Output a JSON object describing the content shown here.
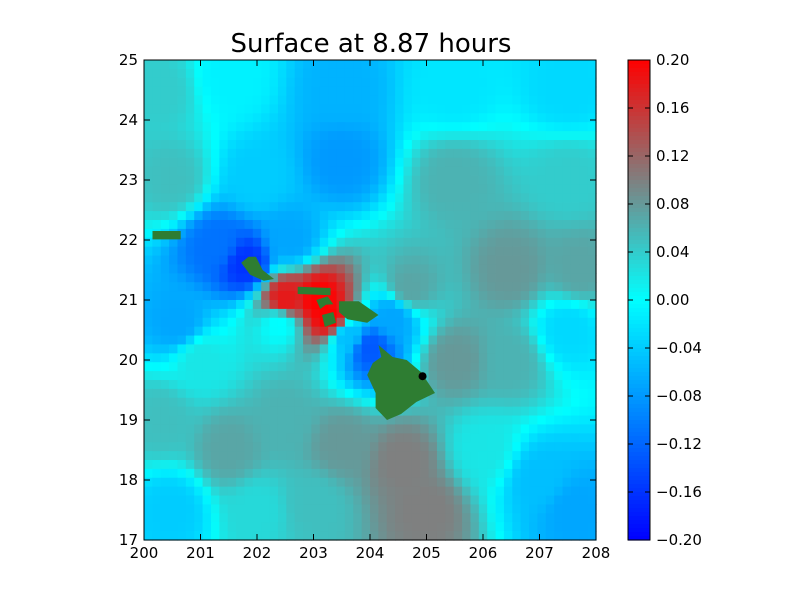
{
  "chart_data": {
    "type": "heatmap",
    "title": "Surface at 8.87 hours",
    "xlabel": "",
    "ylabel": "",
    "xlim": [
      200,
      208
    ],
    "ylim": [
      17,
      25
    ],
    "x_ticks": [
      "200",
      "201",
      "202",
      "203",
      "204",
      "205",
      "206",
      "207",
      "208"
    ],
    "y_ticks": [
      "17",
      "18",
      "19",
      "20",
      "21",
      "22",
      "23",
      "24",
      "25"
    ],
    "grid": false,
    "colorbar": {
      "min": -0.2,
      "max": 0.2,
      "ticks": [
        "0.20",
        "0.16",
        "0.12",
        "0.08",
        "0.04",
        "0.00",
        "−0.04",
        "−0.08",
        "−0.12",
        "−0.16",
        "−0.20"
      ],
      "colors": {
        "min": "#0000ff",
        "zero": "#00ffff",
        "max": "#ff0000"
      }
    },
    "field_samples": [
      {
        "x": 200.3,
        "y": 24.5,
        "value": 0.04
      },
      {
        "x": 201.5,
        "y": 24.7,
        "value": -0.01
      },
      {
        "x": 203.5,
        "y": 24.5,
        "value": -0.06
      },
      {
        "x": 205.5,
        "y": 24.5,
        "value": -0.02
      },
      {
        "x": 207.5,
        "y": 24.5,
        "value": -0.03
      },
      {
        "x": 200.5,
        "y": 23.0,
        "value": 0.05
      },
      {
        "x": 202.0,
        "y": 23.0,
        "value": -0.04
      },
      {
        "x": 203.5,
        "y": 23.3,
        "value": -0.08
      },
      {
        "x": 205.5,
        "y": 23.0,
        "value": 0.06
      },
      {
        "x": 207.5,
        "y": 23.0,
        "value": 0.04
      },
      {
        "x": 201.3,
        "y": 21.9,
        "value": -0.11
      },
      {
        "x": 202.6,
        "y": 22.0,
        "value": -0.07
      },
      {
        "x": 201.8,
        "y": 21.6,
        "value": -0.16
      },
      {
        "x": 204.7,
        "y": 21.2,
        "value": 0.07
      },
      {
        "x": 206.5,
        "y": 21.5,
        "value": 0.08
      },
      {
        "x": 207.7,
        "y": 21.5,
        "value": 0.07
      },
      {
        "x": 200.6,
        "y": 20.6,
        "value": -0.07
      },
      {
        "x": 202.4,
        "y": 20.6,
        "value": 0.0
      },
      {
        "x": 203.1,
        "y": 21.0,
        "value": 0.2
      },
      {
        "x": 203.3,
        "y": 20.7,
        "value": 0.2
      },
      {
        "x": 202.5,
        "y": 21.0,
        "value": 0.18
      },
      {
        "x": 203.6,
        "y": 20.4,
        "value": -0.05
      },
      {
        "x": 204.0,
        "y": 20.2,
        "value": -0.13
      },
      {
        "x": 204.4,
        "y": 20.7,
        "value": -0.07
      },
      {
        "x": 205.5,
        "y": 20.0,
        "value": 0.08
      },
      {
        "x": 206.5,
        "y": 20.0,
        "value": 0.06
      },
      {
        "x": 207.5,
        "y": 20.5,
        "value": -0.03
      },
      {
        "x": 200.3,
        "y": 19.0,
        "value": 0.05
      },
      {
        "x": 201.5,
        "y": 18.5,
        "value": 0.07
      },
      {
        "x": 202.5,
        "y": 19.0,
        "value": 0.06
      },
      {
        "x": 203.5,
        "y": 18.6,
        "value": 0.08
      },
      {
        "x": 204.6,
        "y": 18.3,
        "value": 0.1
      },
      {
        "x": 205.0,
        "y": 17.5,
        "value": 0.1
      },
      {
        "x": 206.0,
        "y": 18.5,
        "value": 0.02
      },
      {
        "x": 207.0,
        "y": 18.0,
        "value": -0.05
      },
      {
        "x": 207.6,
        "y": 17.5,
        "value": -0.07
      },
      {
        "x": 200.5,
        "y": 17.5,
        "value": -0.04
      },
      {
        "x": 202.0,
        "y": 17.5,
        "value": 0.03
      },
      {
        "x": 203.0,
        "y": 17.6,
        "value": 0.05
      },
      {
        "x": 201.0,
        "y": 20.0,
        "value": 0.02
      }
    ],
    "land_color": "#2e7d32",
    "islands": [
      [
        [
          200.15,
          22.15
        ],
        [
          200.65,
          22.15
        ],
        [
          200.65,
          22.01
        ],
        [
          200.15,
          22.01
        ]
      ],
      [
        [
          201.72,
          21.62
        ],
        [
          201.85,
          21.72
        ],
        [
          201.98,
          21.72
        ],
        [
          202.1,
          21.5
        ],
        [
          202.3,
          21.35
        ],
        [
          202.12,
          21.32
        ],
        [
          201.88,
          21.42
        ]
      ],
      [
        [
          202.72,
          21.22
        ],
        [
          203.3,
          21.2
        ],
        [
          203.3,
          21.08
        ],
        [
          202.72,
          21.1
        ]
      ],
      [
        [
          203.05,
          21.0
        ],
        [
          203.25,
          21.06
        ],
        [
          203.35,
          20.93
        ],
        [
          203.22,
          20.92
        ],
        [
          203.12,
          20.85
        ]
      ],
      [
        [
          203.45,
          20.98
        ],
        [
          203.8,
          20.98
        ],
        [
          204.15,
          20.75
        ],
        [
          203.95,
          20.62
        ],
        [
          203.6,
          20.68
        ],
        [
          203.45,
          20.8
        ]
      ],
      [
        [
          203.15,
          20.75
        ],
        [
          203.35,
          20.8
        ],
        [
          203.4,
          20.62
        ],
        [
          203.2,
          20.55
        ]
      ],
      [
        [
          204.15,
          20.25
        ],
        [
          204.4,
          20.05
        ],
        [
          204.65,
          20.0
        ],
        [
          204.9,
          19.8
        ],
        [
          205.15,
          19.45
        ],
        [
          204.82,
          19.3
        ],
        [
          204.55,
          19.1
        ],
        [
          204.3,
          19.0
        ],
        [
          204.1,
          19.2
        ],
        [
          204.1,
          19.45
        ],
        [
          203.95,
          19.75
        ],
        [
          204.05,
          19.95
        ],
        [
          204.2,
          20.05
        ]
      ]
    ],
    "marker": {
      "x": 204.93,
      "y": 19.73
    }
  }
}
